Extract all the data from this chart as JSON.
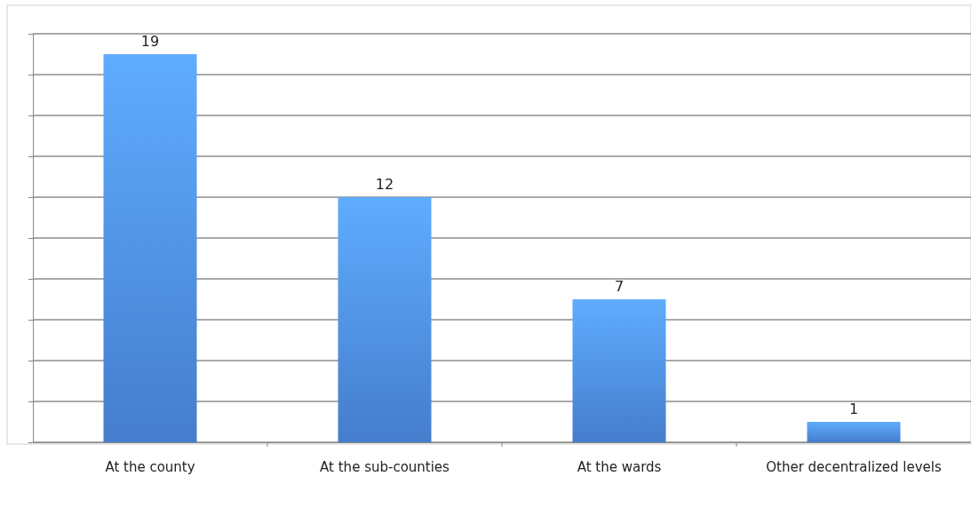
{
  "chart_data": {
    "type": "bar",
    "categories": [
      "At the county",
      "At the sub-counties",
      "At the wards",
      "Other decentralized levels"
    ],
    "values": [
      19,
      12,
      7,
      1
    ],
    "color": "#4a86db",
    "ylim": [
      0,
      20
    ],
    "yticks": [
      {
        "value": 0,
        "label": null
      },
      {
        "value": 2,
        "label": null
      },
      {
        "value": 4,
        "label": null
      },
      {
        "value": 6,
        "label": null
      },
      {
        "value": 8,
        "label": null
      },
      {
        "value": 10,
        "label": null
      },
      {
        "value": 12,
        "label": null
      },
      {
        "value": 14,
        "label": null
      },
      {
        "value": 16,
        "label": null
      },
      {
        "value": 18,
        "label": null
      },
      {
        "value": 20,
        "label": null
      }
    ],
    "grid": "y",
    "tick_labels": "x",
    "data_labels": true
  }
}
